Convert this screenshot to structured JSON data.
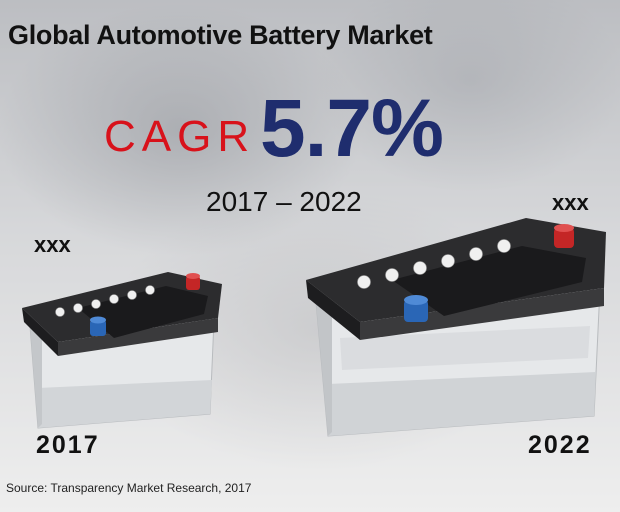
{
  "header": {
    "title": "Global Automotive Battery Market"
  },
  "growth": {
    "label": "CAGR",
    "value": "5.7%",
    "period": "2017 – 2022"
  },
  "markers": {
    "left": {
      "value": "xxx",
      "year": "2017"
    },
    "right": {
      "value": "xxx",
      "year": "2022"
    }
  },
  "source": "Source: Transparency Market Research, 2017",
  "colors": {
    "cagr_label": "#d8121b",
    "cagr_value": "#1f2d6e",
    "battery_top": "#2a2a2c",
    "battery_body": "#e4e6e8",
    "terminal_positive": "#d42a2a",
    "terminal_negative": "#2b6fc0"
  }
}
